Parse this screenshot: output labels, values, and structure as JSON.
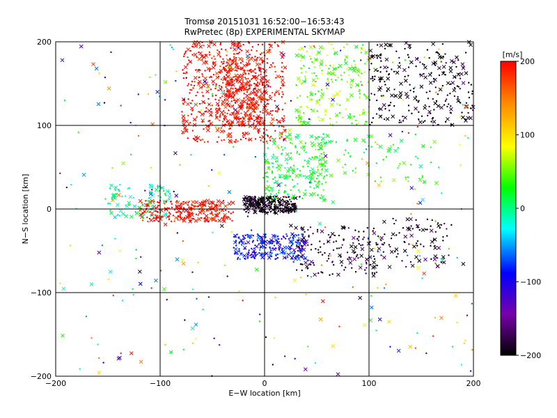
{
  "chart_data": {
    "type": "scatter",
    "title": "Tromsø 20151031 16:52:00−16:53:43",
    "subtitle": "RwPretec (8p) EXPERIMENTAL SKYMAP",
    "xlabel": "E−W location [km]",
    "ylabel": "N−S location [km]",
    "xlim": [
      -200,
      200
    ],
    "ylim": [
      -200,
      200
    ],
    "x_ticks": [
      -200,
      -100,
      0,
      100,
      200
    ],
    "y_ticks": [
      -200,
      -100,
      0,
      100,
      200
    ],
    "x_tick_labels": [
      "−200",
      "−100",
      "0",
      "100",
      "200"
    ],
    "y_tick_labels": [
      "−200",
      "−100",
      "0",
      "100",
      "200"
    ],
    "grid": true,
    "colorbar": {
      "label": "[m/s]",
      "min": -200,
      "max": 200,
      "ticks": [
        200,
        100,
        0,
        -100,
        -200
      ],
      "tick_labels": [
        "200",
        "100",
        "0",
        "−100",
        "−200"
      ],
      "colors": [
        "#000000",
        "#7700aa",
        "#0000ff",
        "#00ffff",
        "#00ff00",
        "#ffff00",
        "#ff8800",
        "#ff0000"
      ]
    },
    "marker_types": [
      "dot",
      "x"
    ],
    "clusters": [
      {
        "x": [
          -80,
          20
        ],
        "y": [
          80,
          200
        ],
        "velocity": 200,
        "approx_points": 600,
        "marker": "mixed"
      },
      {
        "x": [
          -40,
          0
        ],
        "y": [
          100,
          180
        ],
        "velocity": 200,
        "approx_points": 250,
        "marker": "mixed"
      },
      {
        "x": [
          100,
          200
        ],
        "y": [
          100,
          200
        ],
        "velocity": -200,
        "approx_points": 260,
        "marker": "mixed"
      },
      {
        "x": [
          30,
          100
        ],
        "y": [
          100,
          200
        ],
        "velocity": 50,
        "approx_points": 200,
        "marker": "mixed"
      },
      {
        "x": [
          -120,
          -30
        ],
        "y": [
          -15,
          10
        ],
        "velocity": 200,
        "approx_points": 260,
        "marker": "mixed"
      },
      {
        "x": [
          -20,
          30
        ],
        "y": [
          -5,
          15
        ],
        "velocity": -200,
        "approx_points": 260,
        "marker": "mixed"
      },
      {
        "x": [
          -30,
          40
        ],
        "y": [
          -60,
          -30
        ],
        "velocity": -90,
        "approx_points": 240,
        "marker": "mixed"
      },
      {
        "x": [
          -150,
          -90
        ],
        "y": [
          -10,
          30
        ],
        "velocity": -10,
        "approx_points": 90,
        "marker": "mixed"
      },
      {
        "x": [
          0,
          60
        ],
        "y": [
          10,
          90
        ],
        "velocity": 20,
        "approx_points": 220,
        "marker": "mixed"
      },
      {
        "x": [
          30,
          110
        ],
        "y": [
          -80,
          -20
        ],
        "velocity": -180,
        "approx_points": 160,
        "marker": "mixed"
      },
      {
        "x": [
          110,
          180
        ],
        "y": [
          -70,
          -10
        ],
        "velocity": -190,
        "approx_points": 90,
        "marker": "mixed"
      },
      {
        "x": [
          40,
          170
        ],
        "y": [
          30,
          90
        ],
        "velocity": 30,
        "approx_points": 80,
        "marker": "mixed"
      },
      {
        "x": [
          -200,
          200
        ],
        "y": [
          -200,
          200
        ],
        "velocity": 60,
        "approx_points": 320,
        "marker": "mixed"
      }
    ]
  }
}
